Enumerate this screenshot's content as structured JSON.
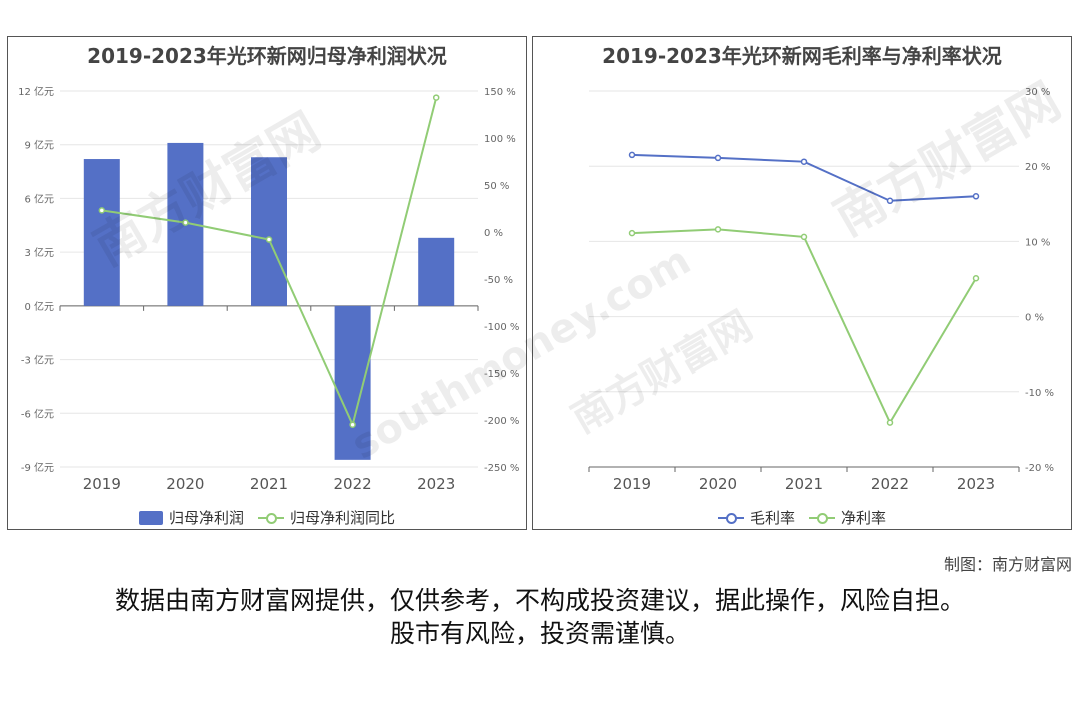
{
  "chart_data": [
    {
      "type": "bar",
      "title": "2019-2023年光环新网归母净利润状况",
      "categories": [
        "2019",
        "2020",
        "2021",
        "2022",
        "2023"
      ],
      "series": [
        {
          "name": "归母净利润",
          "type": "bar",
          "axis": "left",
          "color": "#5470c6",
          "values": [
            8.2,
            9.1,
            8.3,
            -8.6,
            3.8
          ]
        },
        {
          "name": "归母净利润同比",
          "type": "line",
          "axis": "right",
          "color": "#91cc75",
          "values": [
            23,
            10,
            -8,
            -205,
            143
          ]
        }
      ],
      "y_left": {
        "min": -9,
        "max": 12,
        "ticks": [
          12,
          9,
          6,
          3,
          0,
          -3,
          -6,
          -9
        ],
        "unit": "亿元"
      },
      "y_right": {
        "min": -250,
        "max": 150,
        "ticks": [
          150,
          100,
          50,
          0,
          -50,
          -100,
          -150,
          -200,
          -250
        ],
        "unit": "%"
      },
      "legend": "bottom-center"
    },
    {
      "type": "line",
      "title": "2019-2023年光环新网毛利率与净利率状况",
      "categories": [
        "2019",
        "2020",
        "2021",
        "2022",
        "2023"
      ],
      "series": [
        {
          "name": "毛利率",
          "color": "#5470c6",
          "values": [
            21.5,
            21.1,
            20.6,
            15.4,
            16.0
          ]
        },
        {
          "name": "净利率",
          "color": "#91cc75",
          "values": [
            11.1,
            11.6,
            10.6,
            -14.1,
            5.1
          ]
        }
      ],
      "y_right": {
        "min": -20,
        "max": 30,
        "ticks": [
          30,
          20,
          10,
          0,
          -10,
          -20
        ],
        "unit": "%"
      },
      "legend": "bottom-center"
    }
  ],
  "credit": "制图：南方财富网",
  "disclaimer": {
    "line1": "数据由南方财富网提供，仅供参考，不构成投资建议，据此操作，风险自担。",
    "line2": "股市有风险，投资需谨慎。"
  },
  "watermark": {
    "text_cn": "南方财富网",
    "text_en": "southmoney.com"
  }
}
